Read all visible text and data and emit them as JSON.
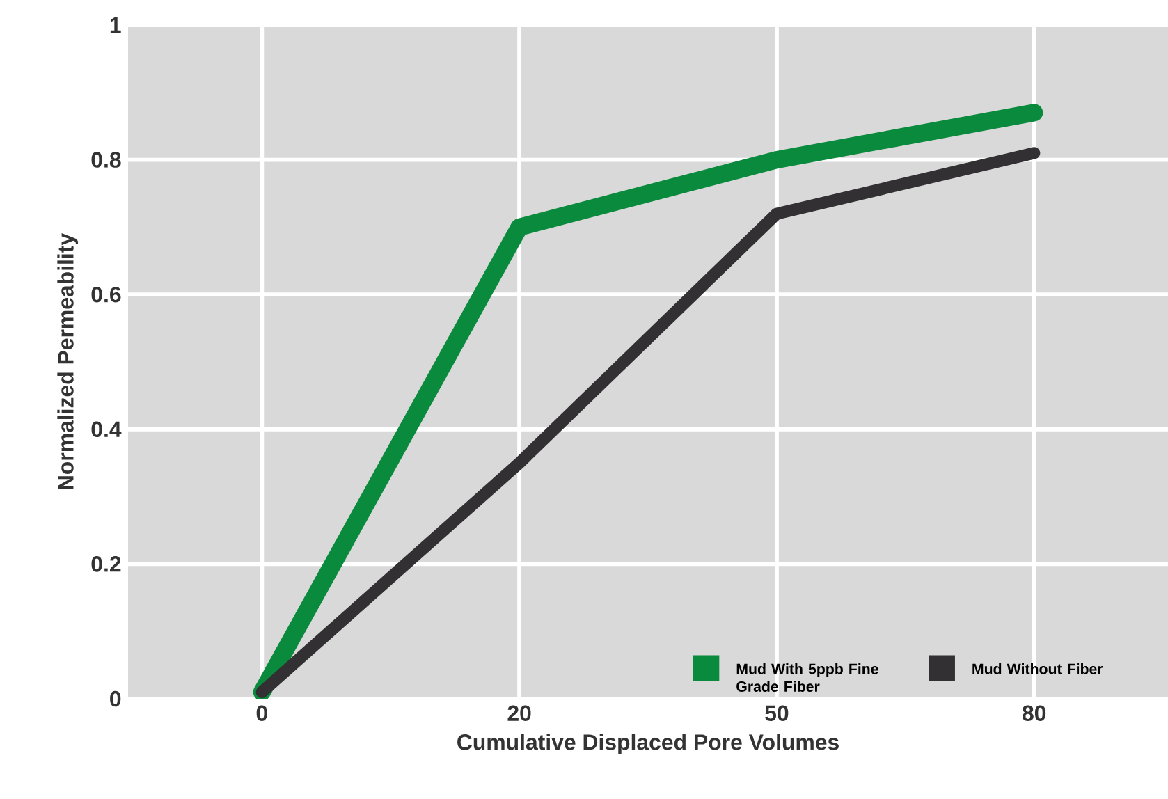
{
  "chart_data": {
    "type": "line",
    "xlabel": "Cumulative Displaced Pore Volumes",
    "ylabel": "Normalized Permeability",
    "categories": [
      "0",
      "20",
      "50",
      "80"
    ],
    "series": [
      {
        "name": "Mud With 5ppb Fine Grade Fiber",
        "color": "#0a8a3c",
        "values": [
          0.01,
          0.7,
          0.8,
          0.87
        ]
      },
      {
        "name": "Mud Without Fiber",
        "color": "#333034",
        "values": [
          0.01,
          0.35,
          0.72,
          0.81
        ]
      }
    ],
    "ylim": [
      0,
      1
    ],
    "yticks": [
      0,
      0.2,
      0.4,
      0.6,
      0.8,
      1
    ],
    "grid": true,
    "legend": "bottom right",
    "marker": "none",
    "line_style": "solid"
  }
}
